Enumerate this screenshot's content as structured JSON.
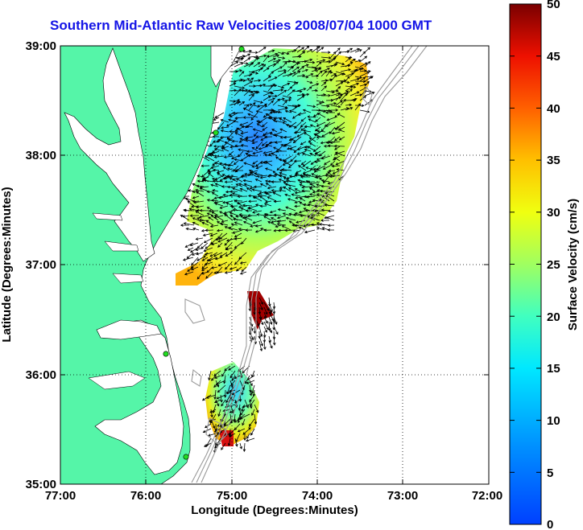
{
  "title": "Southern Mid-Atlantic Raw Velocities 2008/07/04 1000 GMT",
  "xlabel": "Longitude (Degrees:Minutes)",
  "ylabel": "Latitude (Degrees:Minutes)",
  "x_ticks": [
    "77:00",
    "76:00",
    "75:00",
    "74:00",
    "73:00",
    "72:00"
  ],
  "y_ticks": [
    "39:00",
    "38:00",
    "37:00",
    "36:00",
    "35:00"
  ],
  "colorbar": {
    "label": "Surface Velocity (cm/s)",
    "ticks": [
      "50",
      "45",
      "40",
      "35",
      "30",
      "25",
      "20",
      "15",
      "10",
      "5",
      "0"
    ],
    "range": [
      0,
      50
    ]
  },
  "colors": {
    "land": "#55f5a8",
    "water": "#ffffff",
    "title": "#1414e6",
    "station": "#22dd22",
    "bathymetry": "#9a9a9a"
  }
}
